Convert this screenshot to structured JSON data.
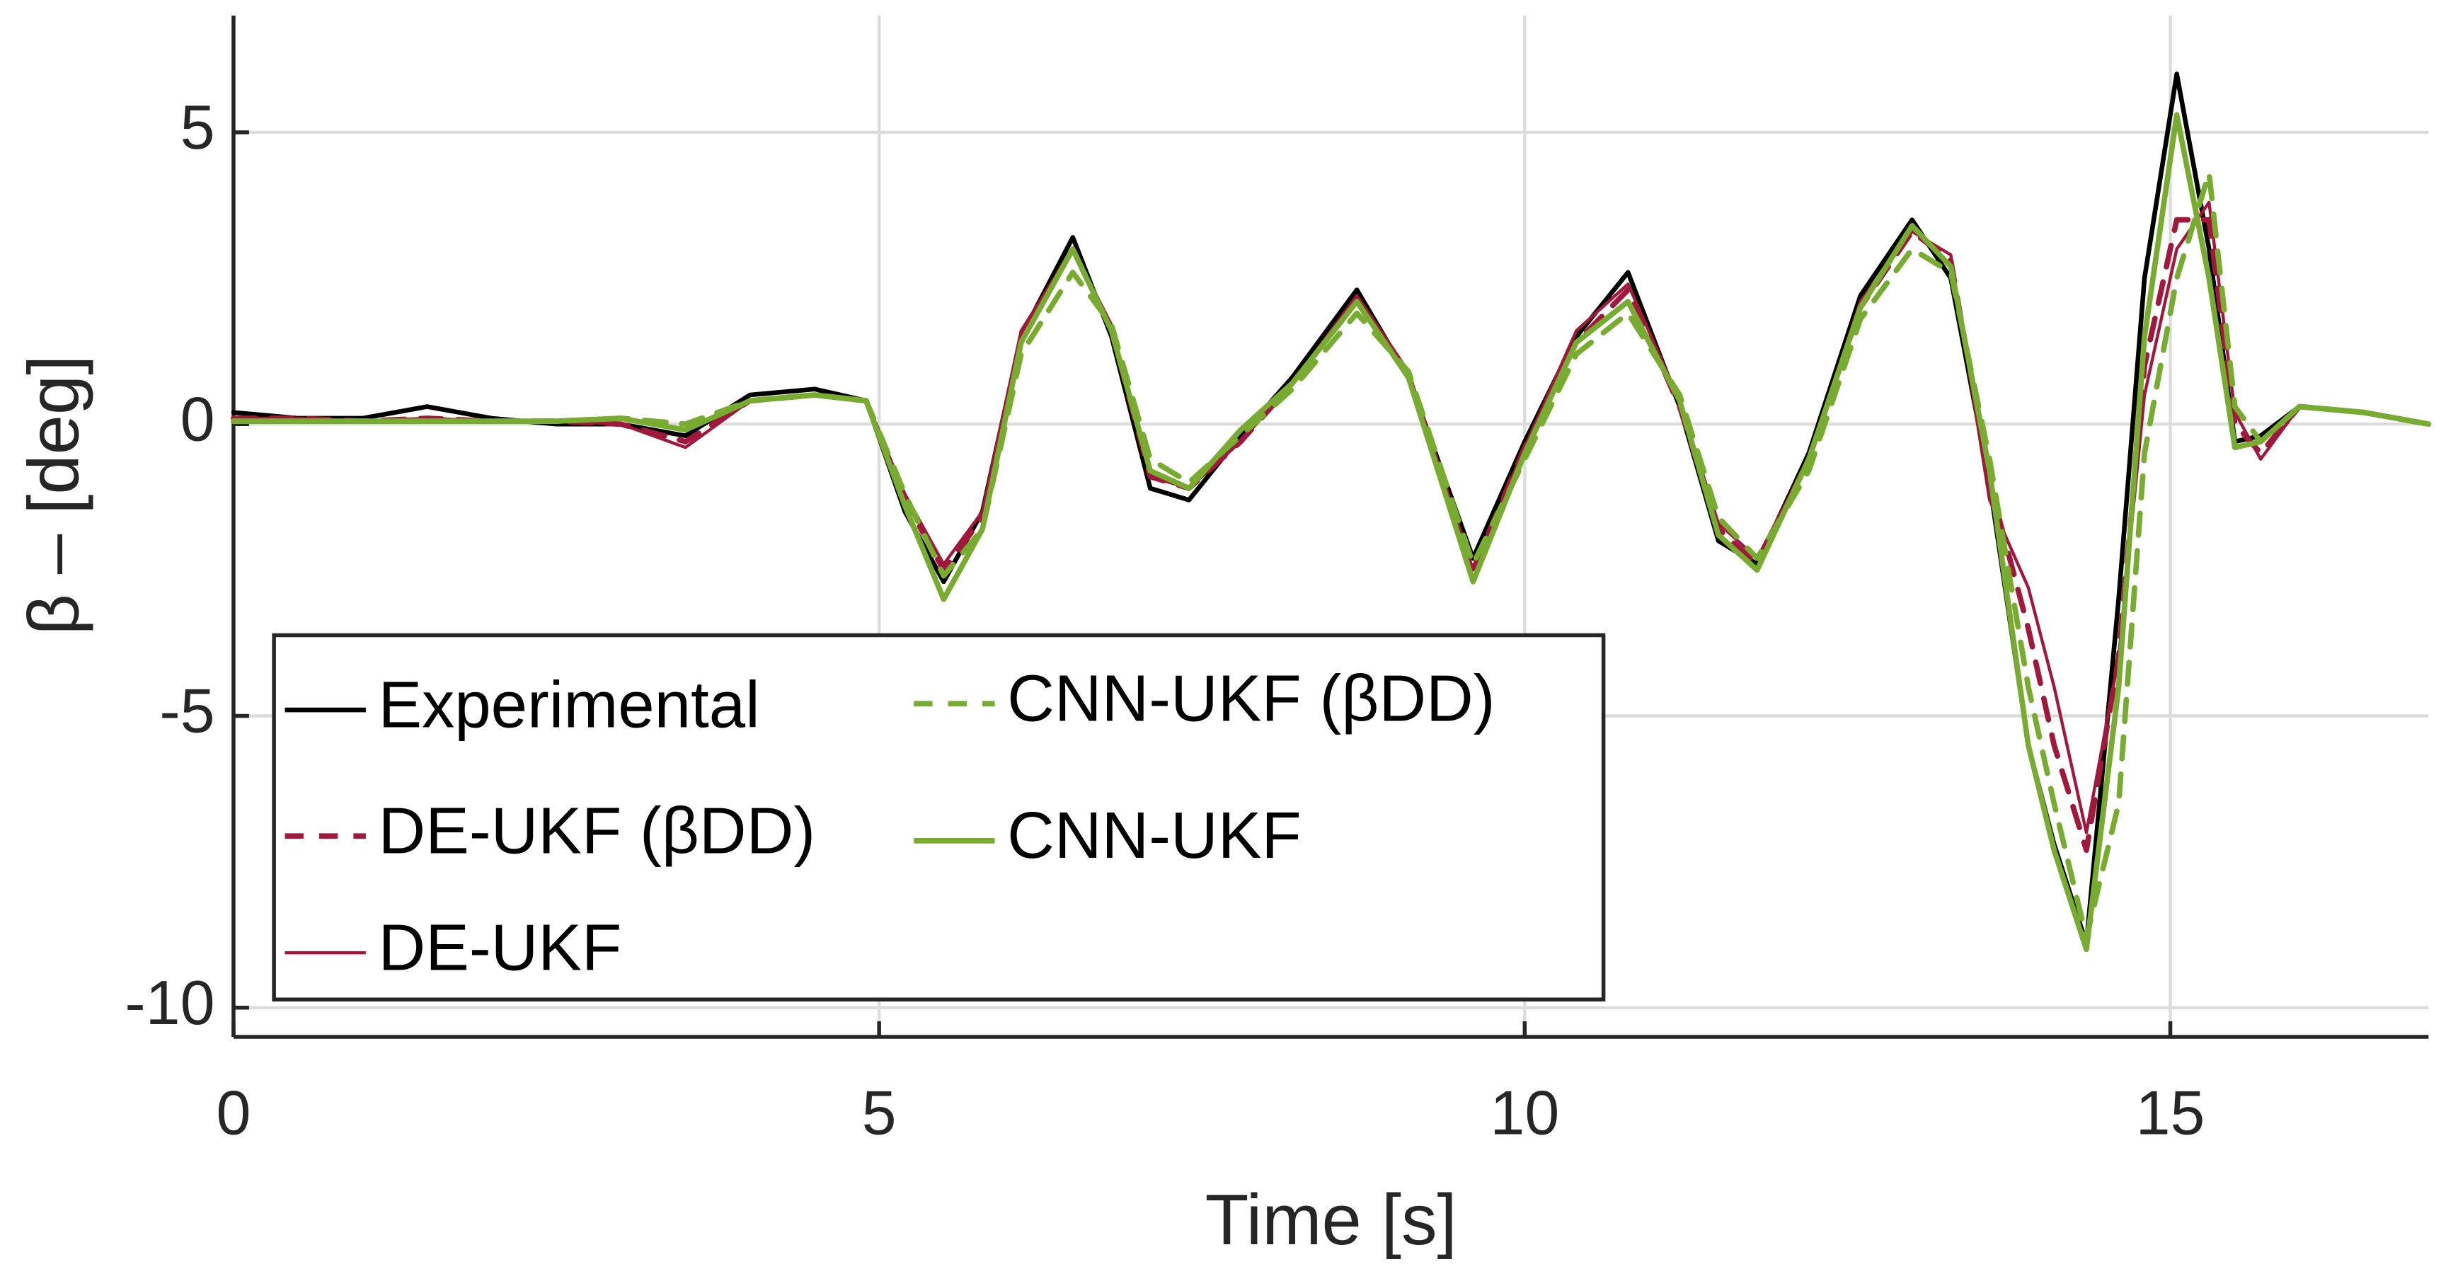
{
  "chart_data": {
    "type": "line",
    "xlabel": "Time [s]",
    "ylabel": "β – [deg]",
    "xlim": [
      0,
      17
    ],
    "ylim": [
      -10.5,
      7
    ],
    "xticks": [
      0,
      5,
      10,
      15
    ],
    "yticks": [
      -10,
      -5,
      0,
      5
    ],
    "grid": true,
    "x": [
      0,
      0.5,
      1,
      1.5,
      2,
      2.5,
      3,
      3.5,
      4,
      4.5,
      4.9,
      5.2,
      5.5,
      5.8,
      6.1,
      6.5,
      6.8,
      7.1,
      7.4,
      7.8,
      8.2,
      8.7,
      9.1,
      9.6,
      10,
      10.4,
      10.8,
      11.2,
      11.5,
      11.8,
      12.2,
      12.6,
      13,
      13.3,
      13.6,
      13.9,
      14.1,
      14.35,
      14.6,
      14.8,
      15.05,
      15.3,
      15.5,
      15.7,
      16,
      16.5,
      17
    ],
    "series": [
      {
        "name": "Experimental",
        "color": "#000000",
        "linestyle": "-",
        "values": [
          0.2,
          0.1,
          0.1,
          0.3,
          0.1,
          0.0,
          0.0,
          -0.2,
          0.5,
          0.6,
          0.4,
          -1.5,
          -2.7,
          -1.5,
          1.5,
          3.2,
          1.5,
          -1.1,
          -1.3,
          -0.2,
          0.8,
          2.3,
          0.8,
          -2.3,
          -0.3,
          1.5,
          2.6,
          0.3,
          -2.0,
          -2.4,
          -0.5,
          2.2,
          3.5,
          2.5,
          -1.0,
          -5.5,
          -7.2,
          -8.9,
          -3.0,
          2.5,
          6.0,
          3.0,
          -0.3,
          -0.2,
          0.3,
          0.2,
          0.0
        ]
      },
      {
        "name": "DE-UKF (βDD)",
        "color": "#a0183c",
        "linestyle": "--",
        "values": [
          0.1,
          0.1,
          0.05,
          0.1,
          0.05,
          0.05,
          0.0,
          -0.3,
          0.4,
          0.5,
          0.4,
          -1.3,
          -2.5,
          -1.6,
          1.5,
          3.0,
          1.6,
          -0.9,
          -1.1,
          -0.3,
          0.7,
          2.1,
          0.8,
          -2.5,
          -0.4,
          1.4,
          2.3,
          0.3,
          -1.8,
          -2.4,
          -0.6,
          2.0,
          3.3,
          2.8,
          -1.0,
          -3.5,
          -5.5,
          -7.3,
          -4.0,
          1.0,
          3.5,
          3.5,
          0.0,
          -0.5,
          0.3,
          0.2,
          0.0
        ]
      },
      {
        "name": "DE-UKF",
        "color": "#a0183c",
        "linestyle": "-",
        "values": [
          0.1,
          0.1,
          0.05,
          0.1,
          0.05,
          0.05,
          0.0,
          -0.4,
          0.4,
          0.5,
          0.4,
          -1.2,
          -2.4,
          -1.5,
          1.6,
          3.0,
          1.7,
          -0.9,
          -1.1,
          -0.3,
          0.7,
          2.2,
          0.9,
          -2.5,
          -0.4,
          1.6,
          2.4,
          0.4,
          -1.7,
          -2.3,
          -0.6,
          2.1,
          3.3,
          2.9,
          -1.3,
          -2.8,
          -4.5,
          -7.0,
          -4.0,
          0.5,
          3.0,
          3.8,
          0.2,
          -0.6,
          0.3,
          0.2,
          0.0
        ]
      },
      {
        "name": "CNN-UKF (βDD)",
        "color": "#77ac30",
        "linestyle": "--",
        "values": [
          0.05,
          0.05,
          0.05,
          0.05,
          0.05,
          0.05,
          0.1,
          0.0,
          0.4,
          0.5,
          0.4,
          -1.2,
          -2.6,
          -1.8,
          1.2,
          2.6,
          1.7,
          -0.6,
          -1.0,
          -0.2,
          0.6,
          1.9,
          0.9,
          -2.4,
          -0.6,
          1.2,
          1.9,
          0.5,
          -1.6,
          -2.3,
          -0.8,
          1.8,
          3.0,
          2.6,
          -0.6,
          -4.5,
          -6.5,
          -8.8,
          -6.5,
          -0.5,
          2.5,
          4.3,
          0.3,
          -0.3,
          0.3,
          0.2,
          0.0
        ]
      },
      {
        "name": "CNN-UKF",
        "color": "#77ac30",
        "linestyle": "-",
        "values": [
          0.05,
          0.05,
          0.05,
          0.05,
          0.05,
          0.05,
          0.1,
          -0.1,
          0.4,
          0.5,
          0.4,
          -1.4,
          -3.0,
          -1.8,
          1.4,
          3.0,
          1.6,
          -0.8,
          -1.1,
          -0.1,
          0.7,
          2.1,
          0.8,
          -2.7,
          -0.5,
          1.4,
          2.1,
          0.4,
          -1.9,
          -2.5,
          -0.6,
          2.0,
          3.4,
          2.7,
          -0.8,
          -5.5,
          -7.3,
          -9.0,
          -4.5,
          1.5,
          5.3,
          2.5,
          -0.4,
          -0.3,
          0.3,
          0.2,
          0.0
        ]
      }
    ]
  }
}
